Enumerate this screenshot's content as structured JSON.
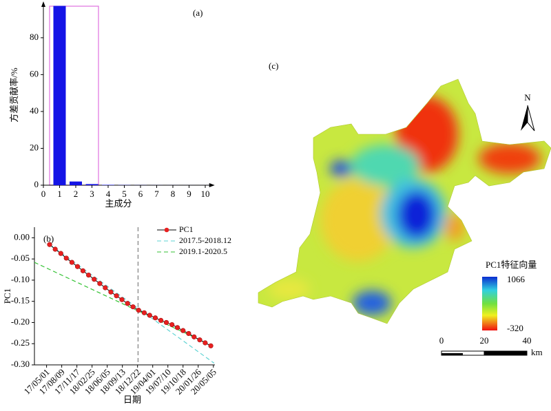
{
  "chart_data": [
    {
      "type": "bar",
      "title": "(a)",
      "xlabel": "主成分",
      "ylabel": "方差贡献率/%",
      "x": [
        1,
        2,
        3,
        4,
        5,
        6,
        7,
        8,
        9,
        10
      ],
      "values": [
        97.3,
        2.0,
        0.6,
        0.2,
        0.1,
        0.05,
        0.03,
        0.02,
        0.01,
        0.01
      ],
      "color": "#1414e6",
      "xlim": [
        0,
        10.5
      ],
      "xticks": [
        0,
        1,
        2,
        3,
        4,
        5,
        6,
        7,
        8,
        9,
        10
      ],
      "ylim": [
        0,
        97.5
      ],
      "yticks": [
        0,
        20,
        40,
        60,
        80
      ]
    },
    {
      "type": "line",
      "title": "(b)",
      "xlabel": "日期",
      "ylabel": "PC1",
      "series": [
        {
          "name": "PC1",
          "color": "#e82020",
          "x": [
            "17/05/21",
            "17/06/27",
            "17/08/03",
            "17/09/08",
            "17/10/15",
            "17/11/21",
            "17/12/27",
            "18/02/02",
            "18/03/11",
            "18/04/17",
            "18/05/23",
            "18/06/29",
            "18/08/05",
            "18/09/10",
            "18/10/17",
            "18/11/22",
            "18/12/29",
            "19/02/04",
            "19/03/12",
            "19/04/18",
            "19/05/25",
            "19/06/30",
            "19/08/06",
            "19/09/11",
            "19/10/18",
            "19/11/24",
            "19/12/30",
            "20/02/05",
            "20/03/12",
            "20/04/18"
          ],
          "values": [
            -0.016,
            -0.027,
            -0.037,
            -0.048,
            -0.058,
            -0.068,
            -0.078,
            -0.088,
            -0.098,
            -0.108,
            -0.118,
            -0.128,
            -0.137,
            -0.146,
            -0.155,
            -0.163,
            -0.171,
            -0.177,
            -0.183,
            -0.189,
            -0.195,
            -0.2,
            -0.205,
            -0.212,
            -0.219,
            -0.226,
            -0.234,
            -0.241,
            -0.248,
            -0.255
          ]
        },
        {
          "name": "2017.5-2018.12",
          "color": "#5fd3d3",
          "x": [
            "17/05/21",
            "20/05/10"
          ],
          "values": [
            -0.016,
            -0.296
          ]
        },
        {
          "name": "2019.1-2020.5",
          "color": "#33c233",
          "x": [
            "17/02/10",
            "20/05/05"
          ],
          "values": [
            -0.058,
            -0.256
          ]
        }
      ],
      "split": "18/12/25",
      "xlim": [
        "17/02/10",
        "20/05/15"
      ],
      "xticks": [
        "17/05/01",
        "17/08/09",
        "17/11/17",
        "18/02/25",
        "18/06/05",
        "18/09/13",
        "18/12/22",
        "19/04/01",
        "19/07/10",
        "19/10/18",
        "20/01/26",
        "20/05/05"
      ],
      "ylim": [
        -0.3,
        0.025
      ],
      "yticks": [
        {
          "value": 0,
          "label": "0.00"
        },
        {
          "value": -0.05,
          "label": "-0.05"
        },
        {
          "value": -0.1,
          "label": "-0.10"
        },
        {
          "value": -0.15,
          "label": "-0.15"
        },
        {
          "value": -0.2,
          "label": "-0.20"
        },
        {
          "value": -0.25,
          "label": "-0.25"
        },
        {
          "value": -0.3,
          "label": "-0.30"
        }
      ],
      "legend": "top-right"
    }
  ],
  "map": {
    "title": "(c)",
    "north": "N",
    "colorbar_title": "PC1特征向量",
    "colorbar_max": "1066",
    "colorbar_min": "-320",
    "scale_labels": [
      "0",
      "20",
      "40"
    ],
    "scale_unit": "km"
  }
}
